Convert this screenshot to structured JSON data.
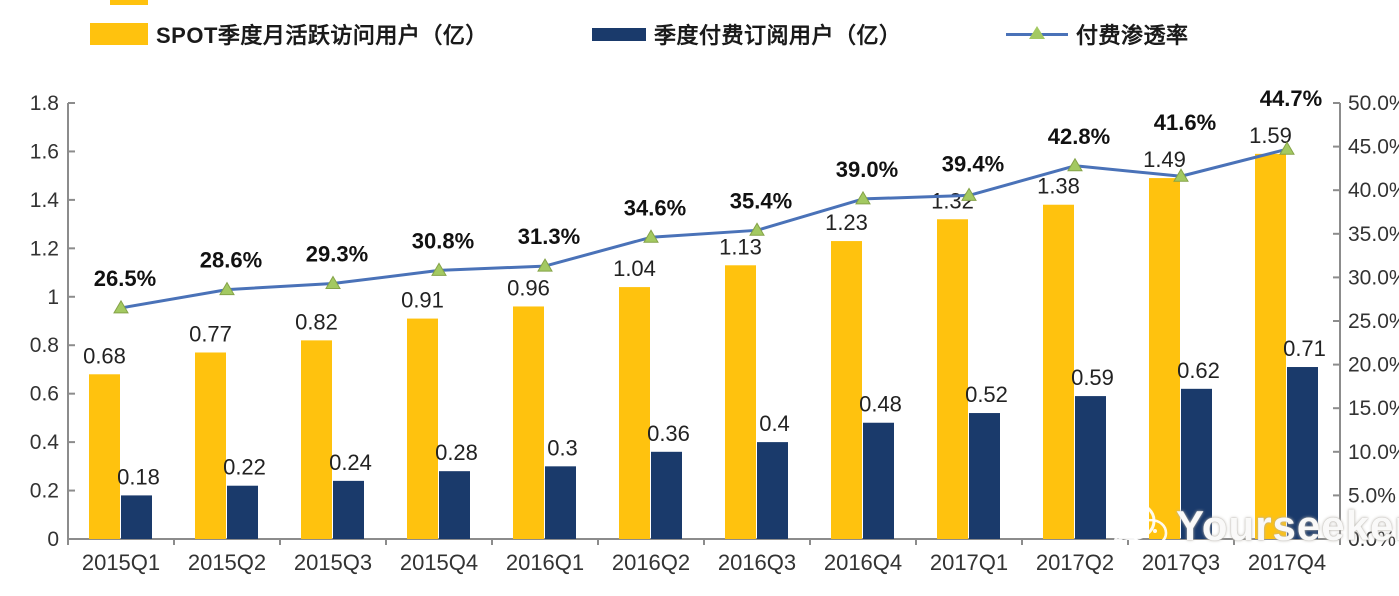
{
  "chart_data": {
    "type": "combo",
    "title": "",
    "categories": [
      "2015Q1",
      "2015Q2",
      "2015Q3",
      "2015Q4",
      "2016Q1",
      "2016Q2",
      "2016Q3",
      "2016Q4",
      "2017Q1",
      "2017Q2",
      "2017Q3",
      "2017Q4"
    ],
    "series": [
      {
        "name": "SPOT季度月活跃访问用户（亿）",
        "type": "bar",
        "axis": "left",
        "color": "#FFC20E",
        "values": [
          0.68,
          0.77,
          0.82,
          0.91,
          0.96,
          1.04,
          1.13,
          1.23,
          1.32,
          1.38,
          1.49,
          1.59
        ],
        "labels": [
          "0.68",
          "0.77",
          "0.82",
          "0.91",
          "0.96",
          "1.04",
          "1.13",
          "1.23",
          "1.32",
          "1.38",
          "1.49",
          "1.59"
        ]
      },
      {
        "name": "季度付费订阅用户（亿）",
        "type": "bar",
        "axis": "left",
        "color": "#1A3A6B",
        "values": [
          0.18,
          0.22,
          0.24,
          0.28,
          0.3,
          0.36,
          0.4,
          0.48,
          0.52,
          0.59,
          0.62,
          0.71
        ],
        "labels": [
          "0.18",
          "0.22",
          "0.24",
          "0.28",
          "0.3",
          "0.36",
          "0.4",
          "0.48",
          "0.52",
          "0.59",
          "0.62",
          "0.71"
        ]
      },
      {
        "name": "付费渗透率",
        "type": "line",
        "axis": "right",
        "color": "#4A72B8",
        "marker": "triangle",
        "marker_fill": "#A3C961",
        "marker_stroke": "#85A348",
        "values": [
          26.5,
          28.6,
          29.3,
          30.8,
          31.3,
          34.6,
          35.4,
          39.0,
          39.4,
          42.8,
          41.6,
          44.7
        ],
        "labels": [
          "26.5%",
          "28.6%",
          "29.3%",
          "30.8%",
          "31.3%",
          "34.6%",
          "35.4%",
          "39.0%",
          "39.4%",
          "42.8%",
          "41.6%",
          "44.7%"
        ]
      }
    ],
    "left_axis": {
      "min": 0,
      "max": 1.8,
      "step": 0.2,
      "tick_labels": [
        "0",
        "0.2",
        "0.4",
        "0.6",
        "0.8",
        "1",
        "1.2",
        "1.4",
        "1.6",
        "1.8"
      ]
    },
    "right_axis": {
      "min": 0,
      "max": 50,
      "step": 5,
      "tick_labels": [
        "0.0%",
        "5.0%",
        "10.0%",
        "15.0%",
        "20.0%",
        "25.0%",
        "30.0%",
        "35.0%",
        "40.0%",
        "45.0%",
        "50.0%"
      ]
    },
    "grid": false,
    "legend_position": "top",
    "axis_color": "#8C8C8C",
    "text_color": "#333333"
  },
  "watermark": {
    "text": "Yourseeker",
    "icon": "wechat-icon"
  }
}
